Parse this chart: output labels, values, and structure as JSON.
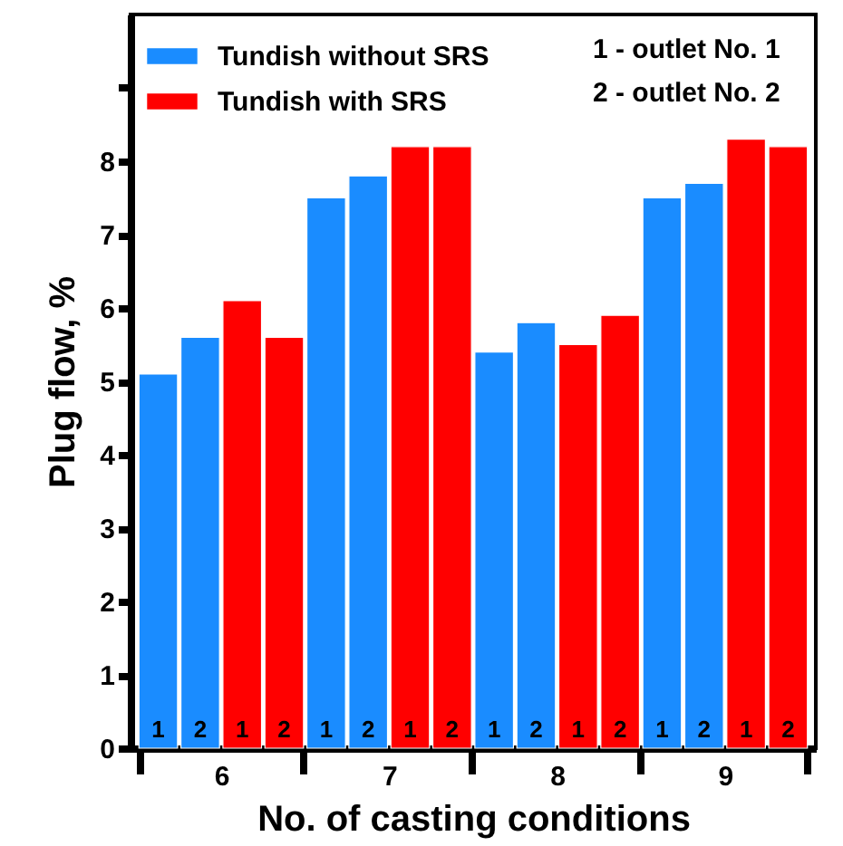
{
  "chart_data": {
    "type": "bar",
    "xlabel": "No. of casting conditions",
    "ylabel": "Plug flow, %",
    "categories": [
      "6",
      "7",
      "8",
      "9"
    ],
    "series": [
      {
        "name": "Tundish without SRS",
        "color": "#1a8cff",
        "values": [
          5.1,
          7.5,
          5.4,
          7.5
        ]
      },
      {
        "color": "#1a8cff",
        "values": [
          5.6,
          7.8,
          5.8,
          7.7
        ]
      },
      {
        "name": "Tundish with SRS",
        "color": "#ff0000",
        "values": [
          6.1,
          8.2,
          5.5,
          8.3
        ]
      },
      {
        "color": "#ff0000",
        "values": [
          5.6,
          8.2,
          5.9,
          8.2
        ]
      }
    ],
    "ylim": [
      0,
      10
    ],
    "yticks": [
      0,
      1,
      2,
      3,
      4,
      5,
      6,
      7,
      8,
      {
        "value": 9,
        "label": null
      }
    ],
    "legend": "top left",
    "annotations": [
      "1 - outlet No. 1",
      "2 - outlet No. 2",
      {
        "text": "1",
        "x": "6",
        "y": 0
      },
      {
        "text": "2",
        "x": "6",
        "y": 0
      },
      {
        "text": "1",
        "x": "6",
        "y": 0
      },
      {
        "text": "2",
        "x": "6",
        "y": 0
      },
      {
        "text": "1",
        "x": "7",
        "y": 0
      },
      {
        "text": "2",
        "x": "7",
        "y": 0
      },
      {
        "text": "1",
        "x": "7",
        "y": 0
      },
      {
        "text": "2",
        "x": "7",
        "y": 0
      },
      {
        "text": "1",
        "x": "8",
        "y": 0
      },
      {
        "text": "2",
        "x": "8",
        "y": 0
      },
      {
        "text": "1",
        "x": "8",
        "y": 0
      },
      {
        "text": "2",
        "x": "8",
        "y": 0
      },
      {
        "text": "1",
        "x": "9",
        "y": 0
      },
      {
        "text": "2",
        "x": "9",
        "y": 0
      },
      {
        "text": "1",
        "x": "9",
        "y": 0
      },
      {
        "text": "2",
        "x": "9",
        "y": 0
      }
    ]
  }
}
